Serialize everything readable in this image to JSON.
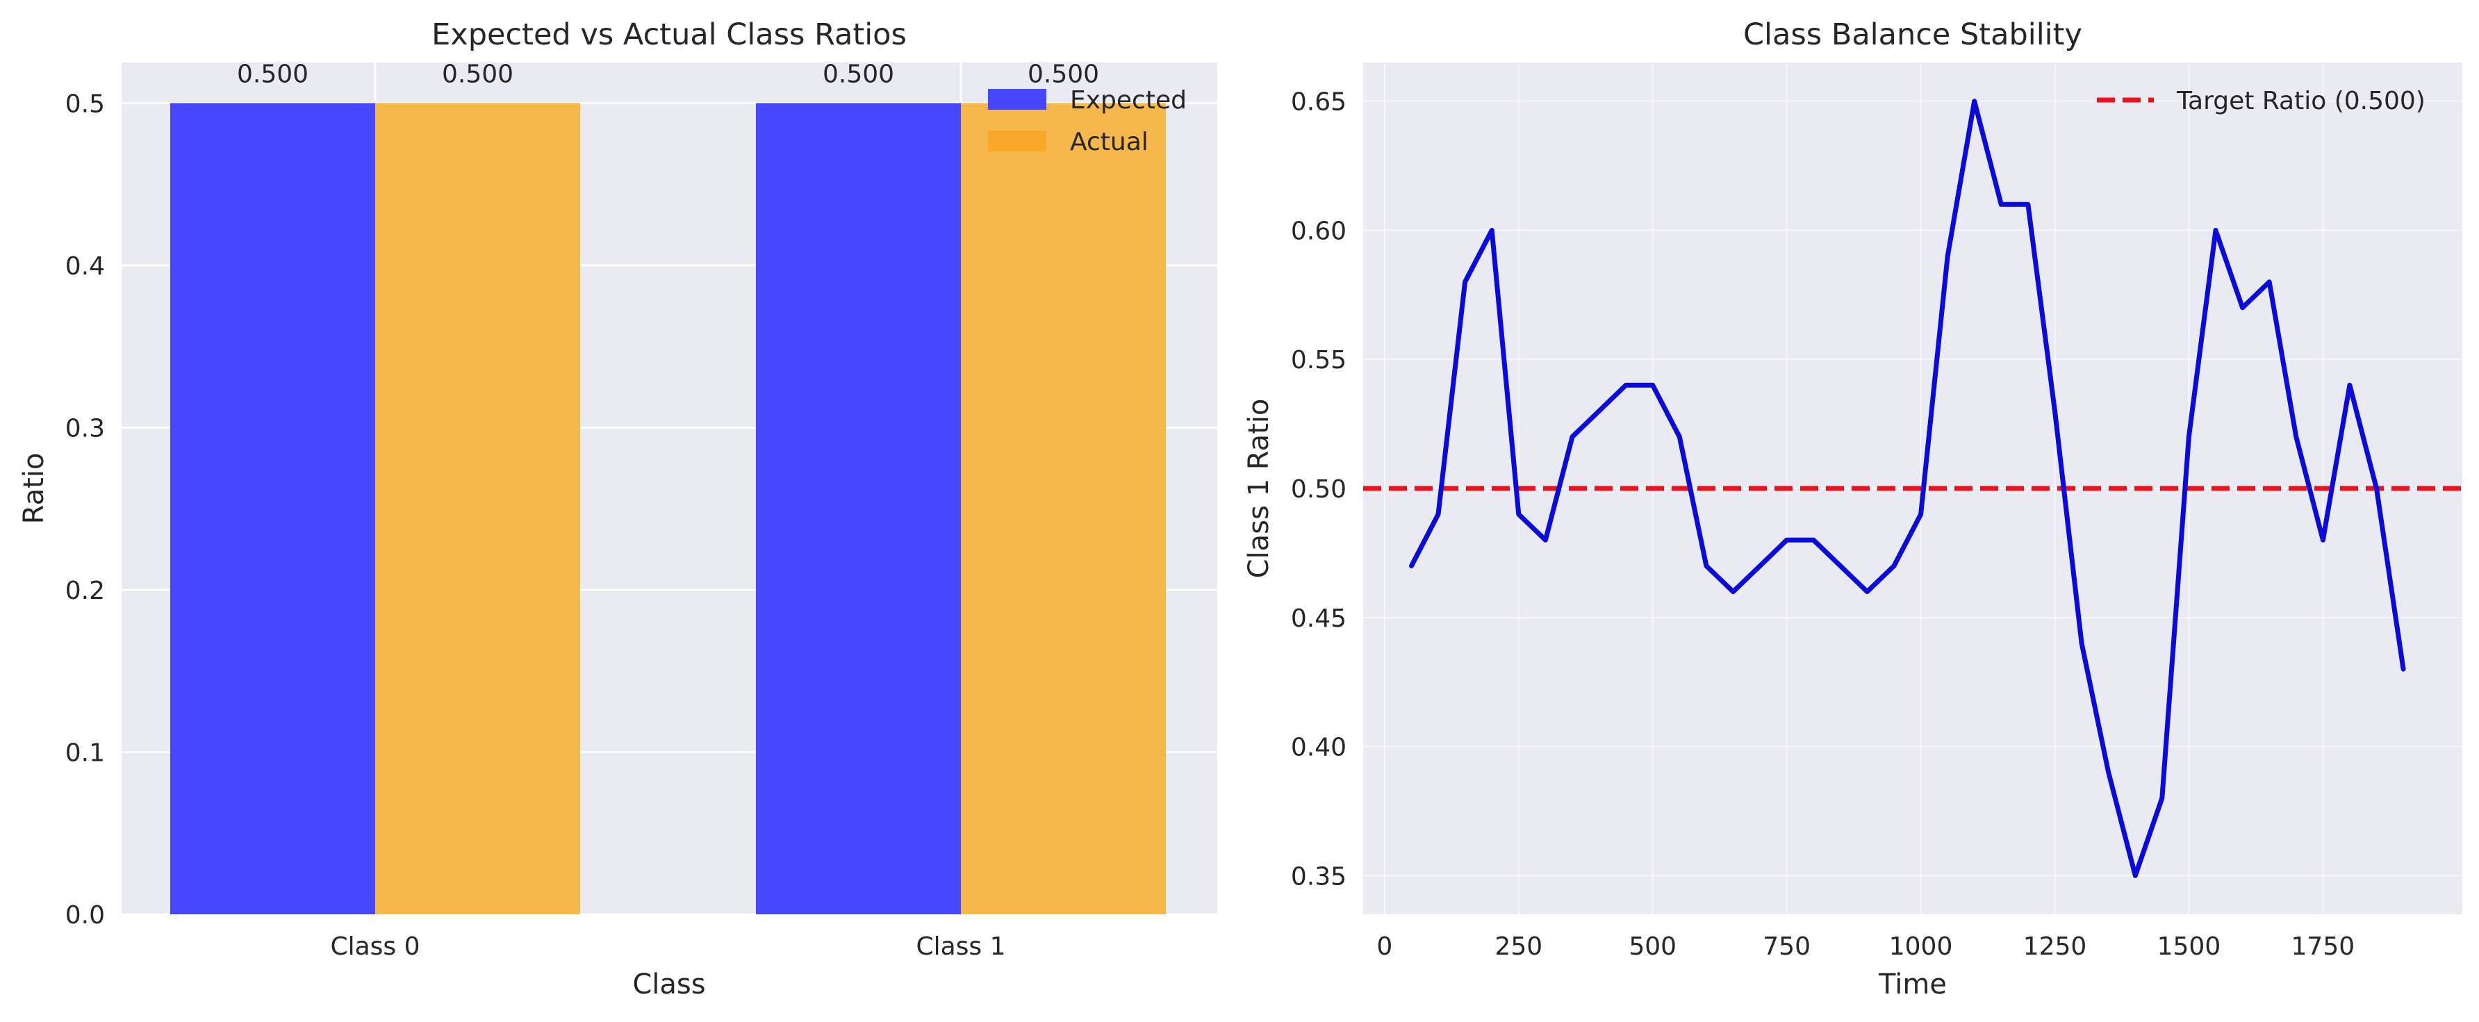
{
  "chart_data": [
    {
      "type": "bar",
      "title": "Expected vs Actual Class Ratios",
      "xlabel": "Class",
      "ylabel": "Ratio",
      "categories": [
        "Class 0",
        "Class 1"
      ],
      "series": [
        {
          "name": "Expected",
          "values": [
            0.5,
            0.5
          ],
          "color": "#4747FF"
        },
        {
          "name": "Actual",
          "values": [
            0.5,
            0.5
          ],
          "color": "#F7B84B"
        }
      ],
      "data_labels": [
        "0.500",
        "0.500",
        "0.500",
        "0.500"
      ],
      "ylim": [
        0,
        0.525
      ],
      "yticks": [
        0.0,
        0.1,
        0.2,
        0.3,
        0.4,
        0.5
      ],
      "ytick_labels": [
        "0.0",
        "0.1",
        "0.2",
        "0.3",
        "0.4",
        "0.5"
      ],
      "grid": true,
      "legend_position": "top-right"
    },
    {
      "type": "line",
      "title": "Class Balance Stability",
      "xlabel": "Time",
      "ylabel": "Class 1 Ratio",
      "x": [
        50,
        100,
        150,
        200,
        250,
        300,
        350,
        400,
        450,
        500,
        550,
        600,
        650,
        700,
        750,
        800,
        850,
        900,
        950,
        1000,
        1050,
        1100,
        1150,
        1200,
        1250,
        1300,
        1350,
        1400,
        1450,
        1500,
        1550,
        1600,
        1650,
        1700,
        1750,
        1800,
        1850,
        1900
      ],
      "series": [
        {
          "name": "Class 1 Ratio",
          "color": "#0A0ADC",
          "values": [
            0.47,
            0.49,
            0.58,
            0.6,
            0.49,
            0.48,
            0.52,
            0.53,
            0.54,
            0.54,
            0.52,
            0.47,
            0.46,
            0.47,
            0.48,
            0.48,
            0.47,
            0.46,
            0.47,
            0.49,
            0.59,
            0.65,
            0.61,
            0.61,
            0.53,
            0.44,
            0.39,
            0.35,
            0.38,
            0.52,
            0.6,
            0.57,
            0.58,
            0.52,
            0.48,
            0.54,
            0.5,
            0.43
          ]
        }
      ],
      "reference_line": {
        "label": "Target Ratio (0.500)",
        "y": 0.5,
        "color": "#E8141E",
        "style": "dashed"
      },
      "xlim": [
        -40,
        2010
      ],
      "ylim": [
        0.335,
        0.665
      ],
      "xticks": [
        0,
        250,
        500,
        750,
        1000,
        1250,
        1500,
        1750
      ],
      "xtick_labels": [
        "0",
        "250",
        "500",
        "750",
        "1000",
        "1250",
        "1500",
        "1750"
      ],
      "yticks": [
        0.35,
        0.4,
        0.45,
        0.5,
        0.55,
        0.6,
        0.65
      ],
      "ytick_labels": [
        "0.35",
        "0.40",
        "0.45",
        "0.50",
        "0.55",
        "0.60",
        "0.65"
      ],
      "grid": true,
      "legend_position": "top-right"
    }
  ]
}
